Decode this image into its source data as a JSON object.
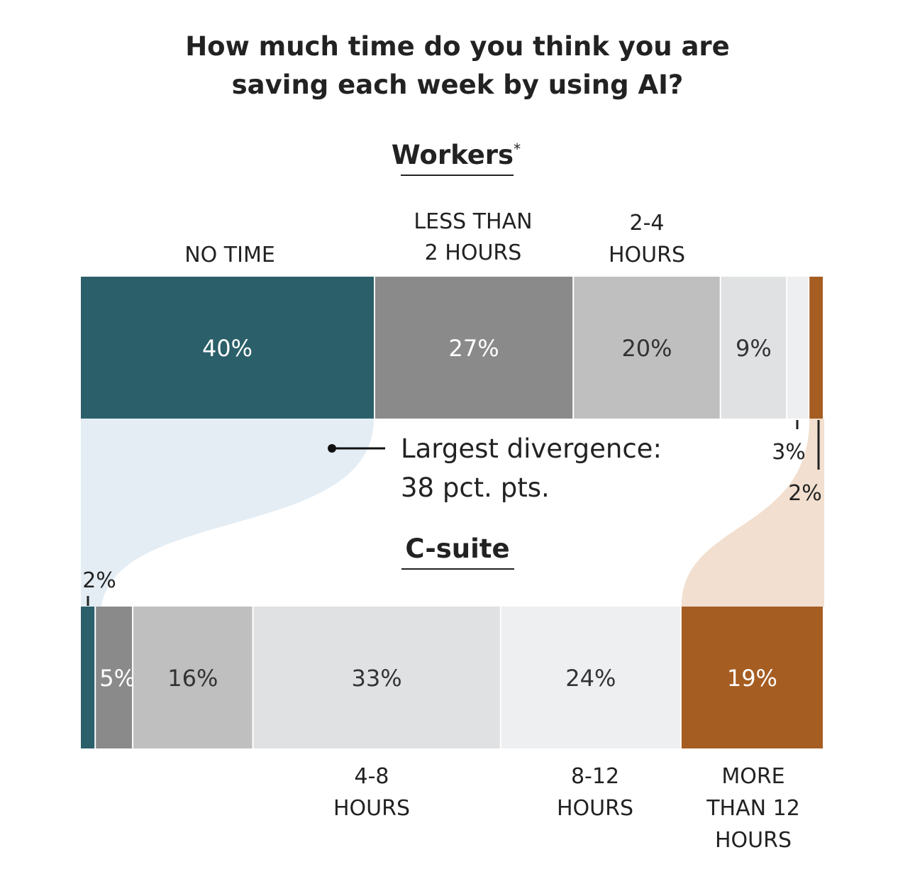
{
  "chart_data": {
    "type": "bar",
    "subtype": "stacked-horizontal-100",
    "title": "How much time do you think you are saving each week by using AI?",
    "title_lines": [
      "How much time do you think you are",
      "saving each week by using AI?"
    ],
    "categories": [
      "No time",
      "Less than 2 hours",
      "2-4 hours",
      "4-8 hours",
      "8-12 hours",
      "More than 12 hours"
    ],
    "category_labels": {
      "no_time": [
        "NO TIME"
      ],
      "lt2": [
        "LESS THAN",
        "2 HOURS"
      ],
      "h2_4": [
        "2-4",
        "HOURS"
      ],
      "h4_8": [
        "4-8",
        "HOURS"
      ],
      "h8_12": [
        "8-12",
        "HOURS"
      ],
      "gt12": [
        "MORE",
        "THAN 12",
        "HOURS"
      ]
    },
    "colors": [
      "#2b5f6a",
      "#8a8a8a",
      "#bfbfbf",
      "#e0e1e3",
      "#eeeff1",
      "#a55d22"
    ],
    "band_colors": {
      "left": "#e4edf4",
      "right": "#f2dfcf"
    },
    "series": [
      {
        "name": "Workers",
        "title_suffix": "*",
        "values": [
          40,
          27,
          20,
          9,
          3,
          2
        ],
        "labels": [
          "40%",
          "27%",
          "20%",
          "9%",
          "3%",
          "2%"
        ]
      },
      {
        "name": "C-suite",
        "title_suffix": "",
        "values": [
          2,
          5,
          16,
          33,
          24,
          19
        ],
        "labels": [
          "2%",
          "5%",
          "16%",
          "33%",
          "24%",
          "19%"
        ]
      }
    ],
    "annotation": {
      "lines": [
        "Largest divergence:",
        "38 pct. pts."
      ]
    },
    "xlim": [
      0,
      100
    ],
    "grid": false,
    "legend": "none"
  }
}
